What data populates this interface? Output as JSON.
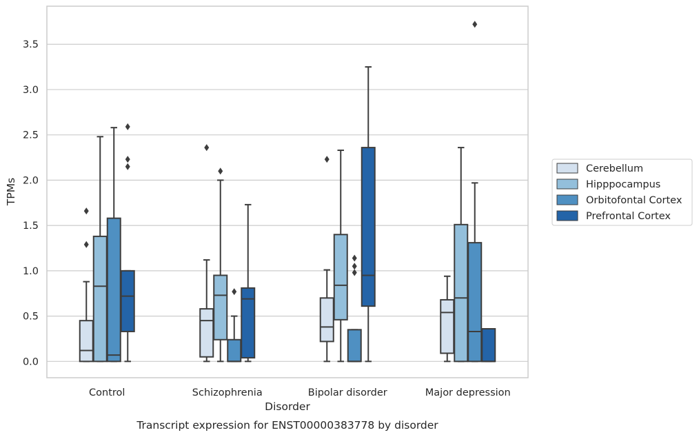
{
  "chart_data": {
    "type": "boxplot",
    "caption": "Transcript expression for ENST00000383778 by disorder",
    "xlabel": "Disorder",
    "ylabel": "TPMs",
    "ylim": [
      -0.18,
      3.92
    ],
    "yticks": [
      0.0,
      0.5,
      1.0,
      1.5,
      2.0,
      2.5,
      3.0,
      3.5
    ],
    "ytick_labels": [
      "0.0",
      "0.5",
      "1.0",
      "1.5",
      "2.0",
      "2.5",
      "3.0",
      "3.5"
    ],
    "grid": "horizontal",
    "legend_position": "right",
    "categories": [
      "Control",
      "Schizophrenia",
      "Bipolar disorder",
      "Major depression"
    ],
    "series": [
      {
        "name": "Cerebellum",
        "color": "#d4e1ef",
        "boxes": [
          {
            "whislo": 0.0,
            "q1": 0.0,
            "med": 0.12,
            "q3": 0.45,
            "whishi": 0.88,
            "fliers": [
              1.29,
              1.66
            ]
          },
          {
            "whislo": 0.0,
            "q1": 0.05,
            "med": 0.45,
            "q3": 0.58,
            "whishi": 1.12,
            "fliers": [
              2.36
            ]
          },
          {
            "whislo": 0.0,
            "q1": 0.22,
            "med": 0.38,
            "q3": 0.7,
            "whishi": 1.01,
            "fliers": [
              2.23
            ]
          },
          {
            "whislo": 0.0,
            "q1": 0.09,
            "med": 0.54,
            "q3": 0.68,
            "whishi": 0.94,
            "fliers": []
          }
        ]
      },
      {
        "name": "Hipppocampus",
        "color": "#93bfdb",
        "boxes": [
          {
            "whislo": 0.0,
            "q1": 0.0,
            "med": 0.83,
            "q3": 1.38,
            "whishi": 2.48,
            "fliers": []
          },
          {
            "whislo": 0.0,
            "q1": 0.24,
            "med": 0.73,
            "q3": 0.95,
            "whishi": 2.0,
            "fliers": [
              2.1
            ]
          },
          {
            "whislo": 0.0,
            "q1": 0.46,
            "med": 0.84,
            "q3": 1.4,
            "whishi": 2.33,
            "fliers": []
          },
          {
            "whislo": 0.0,
            "q1": 0.0,
            "med": 0.7,
            "q3": 1.51,
            "whishi": 2.36,
            "fliers": []
          }
        ]
      },
      {
        "name": "Orbitofontal Cortex",
        "color": "#4f90c2",
        "boxes": [
          {
            "whislo": 0.0,
            "q1": 0.0,
            "med": 0.07,
            "q3": 1.58,
            "whishi": 2.58,
            "fliers": []
          },
          {
            "whislo": 0.0,
            "q1": 0.0,
            "med": 0.0,
            "q3": 0.24,
            "whishi": 0.5,
            "fliers": [
              0.77
            ]
          },
          {
            "whislo": 0.0,
            "q1": 0.0,
            "med": 0.0,
            "q3": 0.35,
            "whishi": 0.35,
            "fliers": [
              0.98,
              1.05,
              1.14
            ]
          },
          {
            "whislo": 0.0,
            "q1": 0.0,
            "med": 0.33,
            "q3": 1.31,
            "whishi": 1.97,
            "fliers": [
              3.72
            ]
          }
        ]
      },
      {
        "name": "Prefrontal Cortex",
        "color": "#2464a8",
        "boxes": [
          {
            "whislo": 0.0,
            "q1": 0.33,
            "med": 0.72,
            "q3": 1.0,
            "whishi": 1.0,
            "fliers": [
              2.15,
              2.23,
              2.59
            ]
          },
          {
            "whislo": 0.0,
            "q1": 0.04,
            "med": 0.69,
            "q3": 0.81,
            "whishi": 1.73,
            "fliers": []
          },
          {
            "whislo": 0.0,
            "q1": 0.61,
            "med": 0.95,
            "q3": 2.36,
            "whishi": 3.25,
            "fliers": []
          },
          {
            "whislo": 0.0,
            "q1": 0.0,
            "med": 0.0,
            "q3": 0.36,
            "whishi": 0.36,
            "fliers": []
          }
        ]
      }
    ]
  }
}
